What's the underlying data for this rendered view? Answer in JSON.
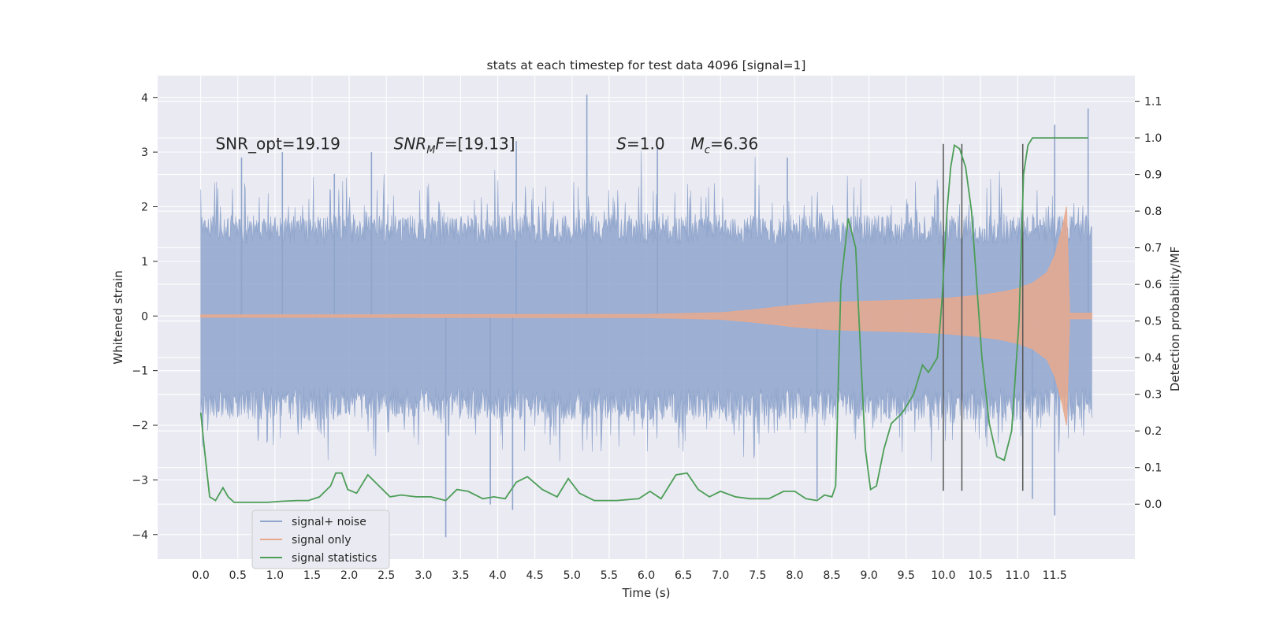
{
  "chart_data": {
    "type": "line",
    "title": "stats at each timestep for test data 4096 [signal=1]",
    "xlabel": "Time (s)",
    "ylabel": "Whitened strain",
    "y2label": "Detection probability/MF",
    "xlim": [
      -0.58,
      12.58
    ],
    "ylim": [
      -4.45,
      4.4
    ],
    "y2lim": [
      -0.15,
      1.17
    ],
    "xticks": [
      0.0,
      0.5,
      1.0,
      1.5,
      2.0,
      2.5,
      3.0,
      3.5,
      4.0,
      4.5,
      5.0,
      5.5,
      6.0,
      6.5,
      7.0,
      7.5,
      8.0,
      8.5,
      9.0,
      9.5,
      10.0,
      10.5,
      11.0,
      11.5
    ],
    "xtick_labels": [
      "0.0",
      "0.5",
      "1.0",
      "1.5",
      "2.0",
      "2.5",
      "3.0",
      "3.5",
      "4.0",
      "4.5",
      "5.0",
      "5.5",
      "6.0",
      "6.5",
      "7.0",
      "7.5",
      "8.0",
      "8.5",
      "9.0",
      "9.5",
      "10.0",
      "10.5",
      "11.0",
      "11.5"
    ],
    "yticks": [
      -4,
      -3,
      -2,
      -1,
      0,
      1,
      2,
      3,
      4
    ],
    "ytick_labels": [
      "−4",
      "−3",
      "−2",
      "−1",
      "0",
      "1",
      "2",
      "3",
      "4"
    ],
    "y2ticks": [
      0.0,
      0.1,
      0.2,
      0.3,
      0.4,
      0.5,
      0.6,
      0.7,
      0.8,
      0.9,
      1.0,
      1.1
    ],
    "y2tick_labels": [
      "0.0",
      "0.1",
      "0.2",
      "0.3",
      "0.4",
      "0.5",
      "0.6",
      "0.7",
      "0.8",
      "0.9",
      "1.0",
      "1.1"
    ],
    "annotations": [
      {
        "id": "snr_opt",
        "text": "SNR_opt=19.19",
        "x": 0.2,
        "y": 3.15
      },
      {
        "id": "snr_mf",
        "text": "SNRₘF=[19.13]",
        "x": 2.6,
        "y": 3.15
      },
      {
        "id": "s_val",
        "text": "S=1.0",
        "x": 5.6,
        "y": 3.15
      },
      {
        "id": "mc_val",
        "text": "Mc=6.36",
        "x": 6.6,
        "y": 3.15
      }
    ],
    "legend": {
      "placement": "lower-left",
      "entries": [
        {
          "label": "signal+ noise",
          "color": "#8fa5cc"
        },
        {
          "label": "signal only",
          "color": "#e8a98d"
        },
        {
          "label": "signal statistics",
          "color": "#4c9e57"
        }
      ]
    },
    "series": [
      {
        "name": "signal+ noise",
        "axis": "left",
        "description": "whitened noisy strain, t = 0 to 12 s, dense band roughly -1.3 to 1.3 with spikes to about +/-3",
        "t_range": [
          0.0,
          12.0
        ],
        "band_core": [
          -1.3,
          1.3
        ],
        "band_outer": [
          -2.0,
          2.0
        ],
        "peak_spikes": [
          {
            "x": 0.55,
            "y": 2.9
          },
          {
            "x": 1.1,
            "y": 3.0
          },
          {
            "x": 1.8,
            "y": 2.6
          },
          {
            "x": 2.3,
            "y": 3.0
          },
          {
            "x": 3.3,
            "y": -4.05
          },
          {
            "x": 3.9,
            "y": -3.45
          },
          {
            "x": 4.2,
            "y": -3.55
          },
          {
            "x": 4.25,
            "y": 3.2
          },
          {
            "x": 5.2,
            "y": 4.05
          },
          {
            "x": 6.15,
            "y": 3.1
          },
          {
            "x": 7.9,
            "y": 2.9
          },
          {
            "x": 8.3,
            "y": -3.35
          },
          {
            "x": 11.2,
            "y": -3.35
          },
          {
            "x": 11.5,
            "y": 3.5
          },
          {
            "x": 11.5,
            "y": -3.65
          },
          {
            "x": 11.95,
            "y": 3.8
          }
        ]
      },
      {
        "name": "signal only",
        "axis": "left",
        "description": "chirp envelope amplitude versus time",
        "envelope_t": [
          0.0,
          6.0,
          7.0,
          7.5,
          8.0,
          8.5,
          9.0,
          9.5,
          10.0,
          10.5,
          10.8,
          11.0,
          11.2,
          11.4,
          11.5,
          11.6,
          11.66,
          11.7,
          12.0
        ],
        "envelope_a": [
          0.02,
          0.03,
          0.06,
          0.12,
          0.2,
          0.25,
          0.27,
          0.29,
          0.32,
          0.38,
          0.44,
          0.5,
          0.6,
          0.8,
          1.1,
          1.6,
          2.0,
          0.05,
          0.05
        ]
      },
      {
        "name": "signal statistics",
        "axis": "right",
        "x": [
          0.0,
          0.05,
          0.12,
          0.2,
          0.3,
          0.37,
          0.45,
          0.55,
          0.7,
          0.9,
          1.1,
          1.3,
          1.45,
          1.6,
          1.75,
          1.82,
          1.9,
          1.98,
          2.1,
          2.25,
          2.4,
          2.55,
          2.7,
          2.9,
          3.1,
          3.3,
          3.45,
          3.6,
          3.8,
          3.95,
          4.1,
          4.25,
          4.4,
          4.6,
          4.8,
          4.95,
          5.1,
          5.3,
          5.6,
          5.9,
          6.05,
          6.2,
          6.4,
          6.55,
          6.7,
          6.85,
          7.0,
          7.2,
          7.4,
          7.65,
          7.85,
          8.0,
          8.15,
          8.3,
          8.4,
          8.5,
          8.55,
          8.62,
          8.72,
          8.82,
          8.9,
          8.95,
          9.02,
          9.1,
          9.2,
          9.3,
          9.45,
          9.6,
          9.72,
          9.8,
          9.92,
          9.98,
          10.05,
          10.1,
          10.15,
          10.22,
          10.3,
          10.38,
          10.45,
          10.52,
          10.62,
          10.72,
          10.82,
          10.92,
          11.02,
          11.08,
          11.14,
          11.2,
          11.3,
          11.5,
          11.7,
          11.8,
          11.9,
          11.95
        ],
        "y": [
          0.25,
          0.15,
          0.02,
          0.01,
          0.045,
          0.02,
          0.005,
          0.005,
          0.005,
          0.005,
          0.008,
          0.01,
          0.01,
          0.02,
          0.05,
          0.085,
          0.085,
          0.04,
          0.03,
          0.08,
          0.05,
          0.02,
          0.025,
          0.02,
          0.02,
          0.01,
          0.04,
          0.035,
          0.015,
          0.02,
          0.015,
          0.06,
          0.075,
          0.04,
          0.02,
          0.07,
          0.03,
          0.01,
          0.01,
          0.015,
          0.035,
          0.015,
          0.08,
          0.085,
          0.04,
          0.02,
          0.035,
          0.02,
          0.015,
          0.015,
          0.035,
          0.035,
          0.015,
          0.01,
          0.025,
          0.02,
          0.05,
          0.6,
          0.78,
          0.7,
          0.35,
          0.15,
          0.04,
          0.05,
          0.15,
          0.22,
          0.25,
          0.3,
          0.38,
          0.36,
          0.4,
          0.55,
          0.8,
          0.92,
          0.98,
          0.97,
          0.92,
          0.8,
          0.6,
          0.4,
          0.22,
          0.13,
          0.12,
          0.2,
          0.5,
          0.9,
          0.98,
          1.0,
          1.0,
          1.0,
          1.0,
          1.0,
          1.0,
          1.0
        ]
      }
    ],
    "vertical_markers": [
      {
        "x": 10.0,
        "y_range": [
          -3.2,
          3.15
        ]
      },
      {
        "x": 10.25,
        "y_range": [
          -3.2,
          3.15
        ]
      },
      {
        "x": 11.07,
        "y_range": [
          -3.2,
          3.15
        ]
      }
    ]
  }
}
